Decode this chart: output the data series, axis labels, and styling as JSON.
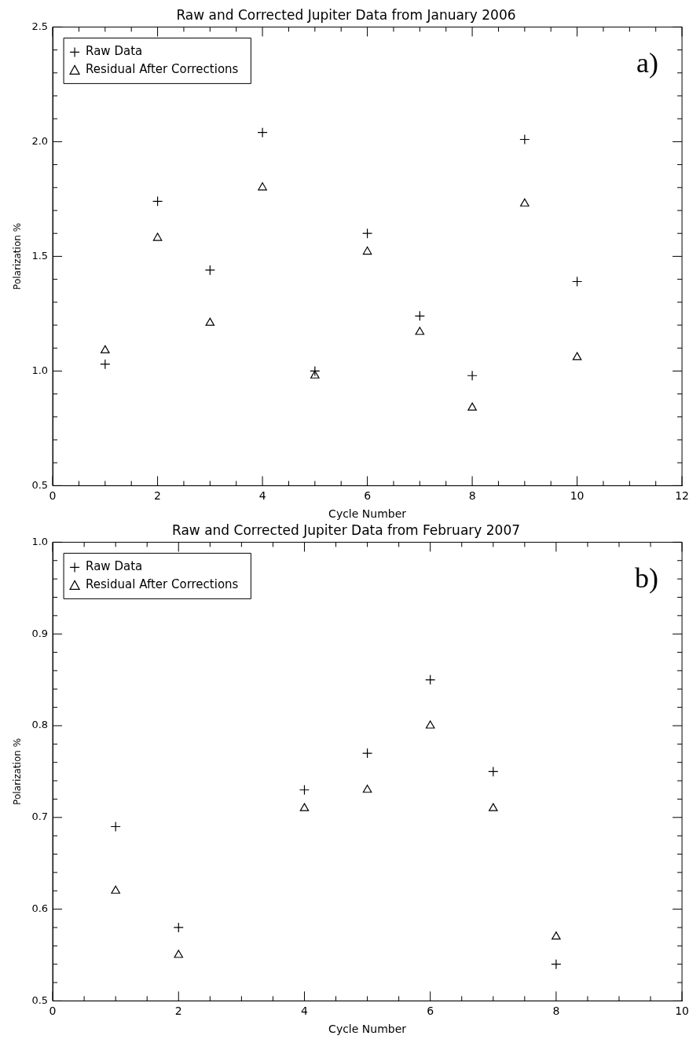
{
  "chart_data": [
    {
      "type": "scatter",
      "title": "Raw and Corrected Jupiter Data from January 2006",
      "xlabel": "Cycle Number",
      "ylabel": "Polarization %",
      "annotations": [
        "a)"
      ],
      "legend": "top left",
      "grid": false,
      "x": [
        1,
        2,
        3,
        4,
        5,
        6,
        7,
        8,
        9,
        10
      ],
      "series": [
        {
          "name": "Raw Data",
          "color": "#000000",
          "marker": "cross",
          "values": [
            1.03,
            1.74,
            1.44,
            2.04,
            1.0,
            1.6,
            1.24,
            0.98,
            2.01,
            1.39
          ]
        },
        {
          "name": "Residual After Corrections",
          "color": "#000000",
          "marker": "triangle",
          "values": [
            1.09,
            1.58,
            1.21,
            1.8,
            0.98,
            1.52,
            1.17,
            0.84,
            1.73,
            1.06
          ]
        }
      ],
      "xlim": [
        0,
        12
      ],
      "xticks": [
        0,
        {
          "value": 0.5,
          "label": null
        },
        2,
        {
          "value": 1,
          "label": null
        },
        {
          "value": 1.5,
          "label": null
        },
        {
          "value": 2.5,
          "label": null
        },
        {
          "value": 3,
          "label": null
        },
        {
          "value": 3.5,
          "label": null
        },
        4,
        {
          "value": 4.5,
          "label": null
        },
        {
          "value": 5,
          "label": null
        },
        {
          "value": 5.5,
          "label": null
        },
        6,
        {
          "value": 6.5,
          "label": null
        },
        {
          "value": 7,
          "label": null
        },
        {
          "value": 7.5,
          "label": null
        },
        8,
        {
          "value": 8.5,
          "label": null
        },
        {
          "value": 9,
          "label": null
        },
        {
          "value": 9.5,
          "label": null
        },
        10,
        {
          "value": 10.5,
          "label": null
        },
        {
          "value": 11,
          "label": null
        },
        {
          "value": 11.5,
          "label": null
        },
        12
      ],
      "ylim": [
        0.5,
        2.5
      ],
      "yticks": [
        0.5,
        {
          "value": 0.6,
          "label": null
        },
        {
          "value": 0.7,
          "label": null
        },
        {
          "value": 0.8,
          "label": null
        },
        {
          "value": 0.9,
          "label": null
        },
        {
          "value": 1,
          "label": "1.0"
        },
        {
          "value": 1.1,
          "label": null
        },
        {
          "value": 1.2,
          "label": null
        },
        {
          "value": 1.3,
          "label": null
        },
        {
          "value": 1.4,
          "label": null
        },
        1.5,
        {
          "value": 1.6,
          "label": null
        },
        {
          "value": 1.7,
          "label": null
        },
        {
          "value": 1.8,
          "label": null
        },
        {
          "value": 1.9,
          "label": null
        },
        {
          "value": 2,
          "label": "2.0"
        },
        {
          "value": 2.1,
          "label": null
        },
        {
          "value": 2.2,
          "label": null
        },
        {
          "value": 2.3,
          "label": null
        },
        {
          "value": 2.4,
          "label": null
        },
        2.5
      ]
    },
    {
      "type": "scatter",
      "title": "Raw and Corrected Jupiter Data from February 2007",
      "xlabel": "Cycle Number",
      "ylabel": "Polarization %",
      "annotations": [
        "b)"
      ],
      "legend": "top left",
      "grid": false,
      "x": [
        1,
        2,
        4,
        5,
        6,
        7,
        8
      ],
      "series": [
        {
          "name": "Raw Data",
          "color": "#000000",
          "marker": "cross",
          "values": [
            0.69,
            0.58,
            0.73,
            0.77,
            0.85,
            0.75,
            0.54
          ]
        },
        {
          "name": "Residual After Corrections",
          "color": "#000000",
          "marker": "triangle",
          "values": [
            0.62,
            0.55,
            0.71,
            0.73,
            0.8,
            0.71,
            0.57
          ]
        }
      ],
      "xlim": [
        0,
        10
      ],
      "xticks": [
        0,
        {
          "value": 0.5,
          "label": null
        },
        {
          "value": 1,
          "label": null
        },
        {
          "value": 1.5,
          "label": null
        },
        2,
        {
          "value": 2.5,
          "label": null
        },
        {
          "value": 3,
          "label": null
        },
        {
          "value": 3.5,
          "label": null
        },
        4,
        {
          "value": 4.5,
          "label": null
        },
        {
          "value": 5,
          "label": null
        },
        {
          "value": 5.5,
          "label": null
        },
        6,
        {
          "value": 6.5,
          "label": null
        },
        {
          "value": 7,
          "label": null
        },
        {
          "value": 7.5,
          "label": null
        },
        8,
        {
          "value": 8.5,
          "label": null
        },
        {
          "value": 9,
          "label": null
        },
        {
          "value": 9.5,
          "label": null
        },
        10
      ],
      "ylim": [
        0.5,
        1.0
      ],
      "yticks": [
        0.5,
        {
          "value": 0.52,
          "label": null
        },
        {
          "value": 0.54,
          "label": null
        },
        {
          "value": 0.56,
          "label": null
        },
        {
          "value": 0.58,
          "label": null
        },
        0.6,
        {
          "value": 0.62,
          "label": null
        },
        {
          "value": 0.64,
          "label": null
        },
        {
          "value": 0.66,
          "label": null
        },
        {
          "value": 0.68,
          "label": null
        },
        0.7,
        {
          "value": 0.72,
          "label": null
        },
        {
          "value": 0.74,
          "label": null
        },
        {
          "value": 0.76,
          "label": null
        },
        {
          "value": 0.78,
          "label": null
        },
        0.8,
        {
          "value": 0.82,
          "label": null
        },
        {
          "value": 0.84,
          "label": null
        },
        {
          "value": 0.86,
          "label": null
        },
        {
          "value": 0.88,
          "label": null
        },
        0.9,
        {
          "value": 0.92,
          "label": null
        },
        {
          "value": 0.94,
          "label": null
        },
        {
          "value": 0.96,
          "label": null
        },
        {
          "value": 0.98,
          "label": null
        },
        {
          "value": 1,
          "label": "1.0"
        }
      ]
    }
  ]
}
